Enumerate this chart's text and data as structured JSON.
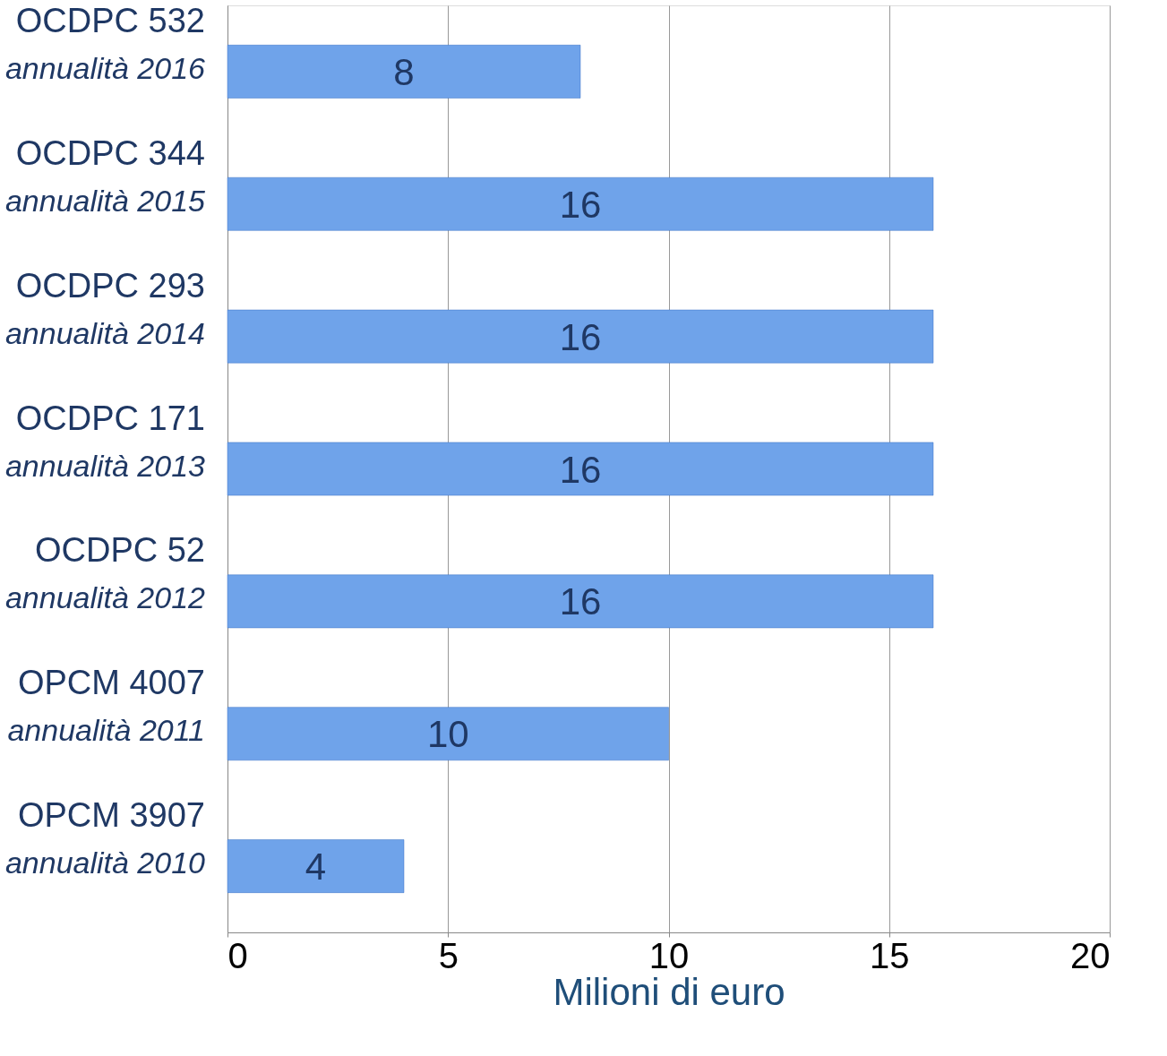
{
  "chart_data": {
    "type": "bar",
    "orientation": "horizontal",
    "categories": [
      "OCDPC 532\nannualità 2016",
      "OCDPC 344\nannualità 2015",
      "OCDPC 293\nannualità 2014",
      "OCDPC 171\nannualità 2013",
      "OCDPC 52\nannualità 2012",
      "OPCM 4007\nannualità 2011",
      "OPCM 3907\nannualità 2010"
    ],
    "values": [
      8,
      16,
      16,
      16,
      16,
      10,
      4
    ],
    "color": "#6fa3ea",
    "xlim": [
      0,
      20
    ],
    "xticks": [
      0,
      5,
      10,
      15,
      20
    ],
    "xlabel": "Milioni di euro",
    "grid": "x",
    "data_labels": true
  }
}
